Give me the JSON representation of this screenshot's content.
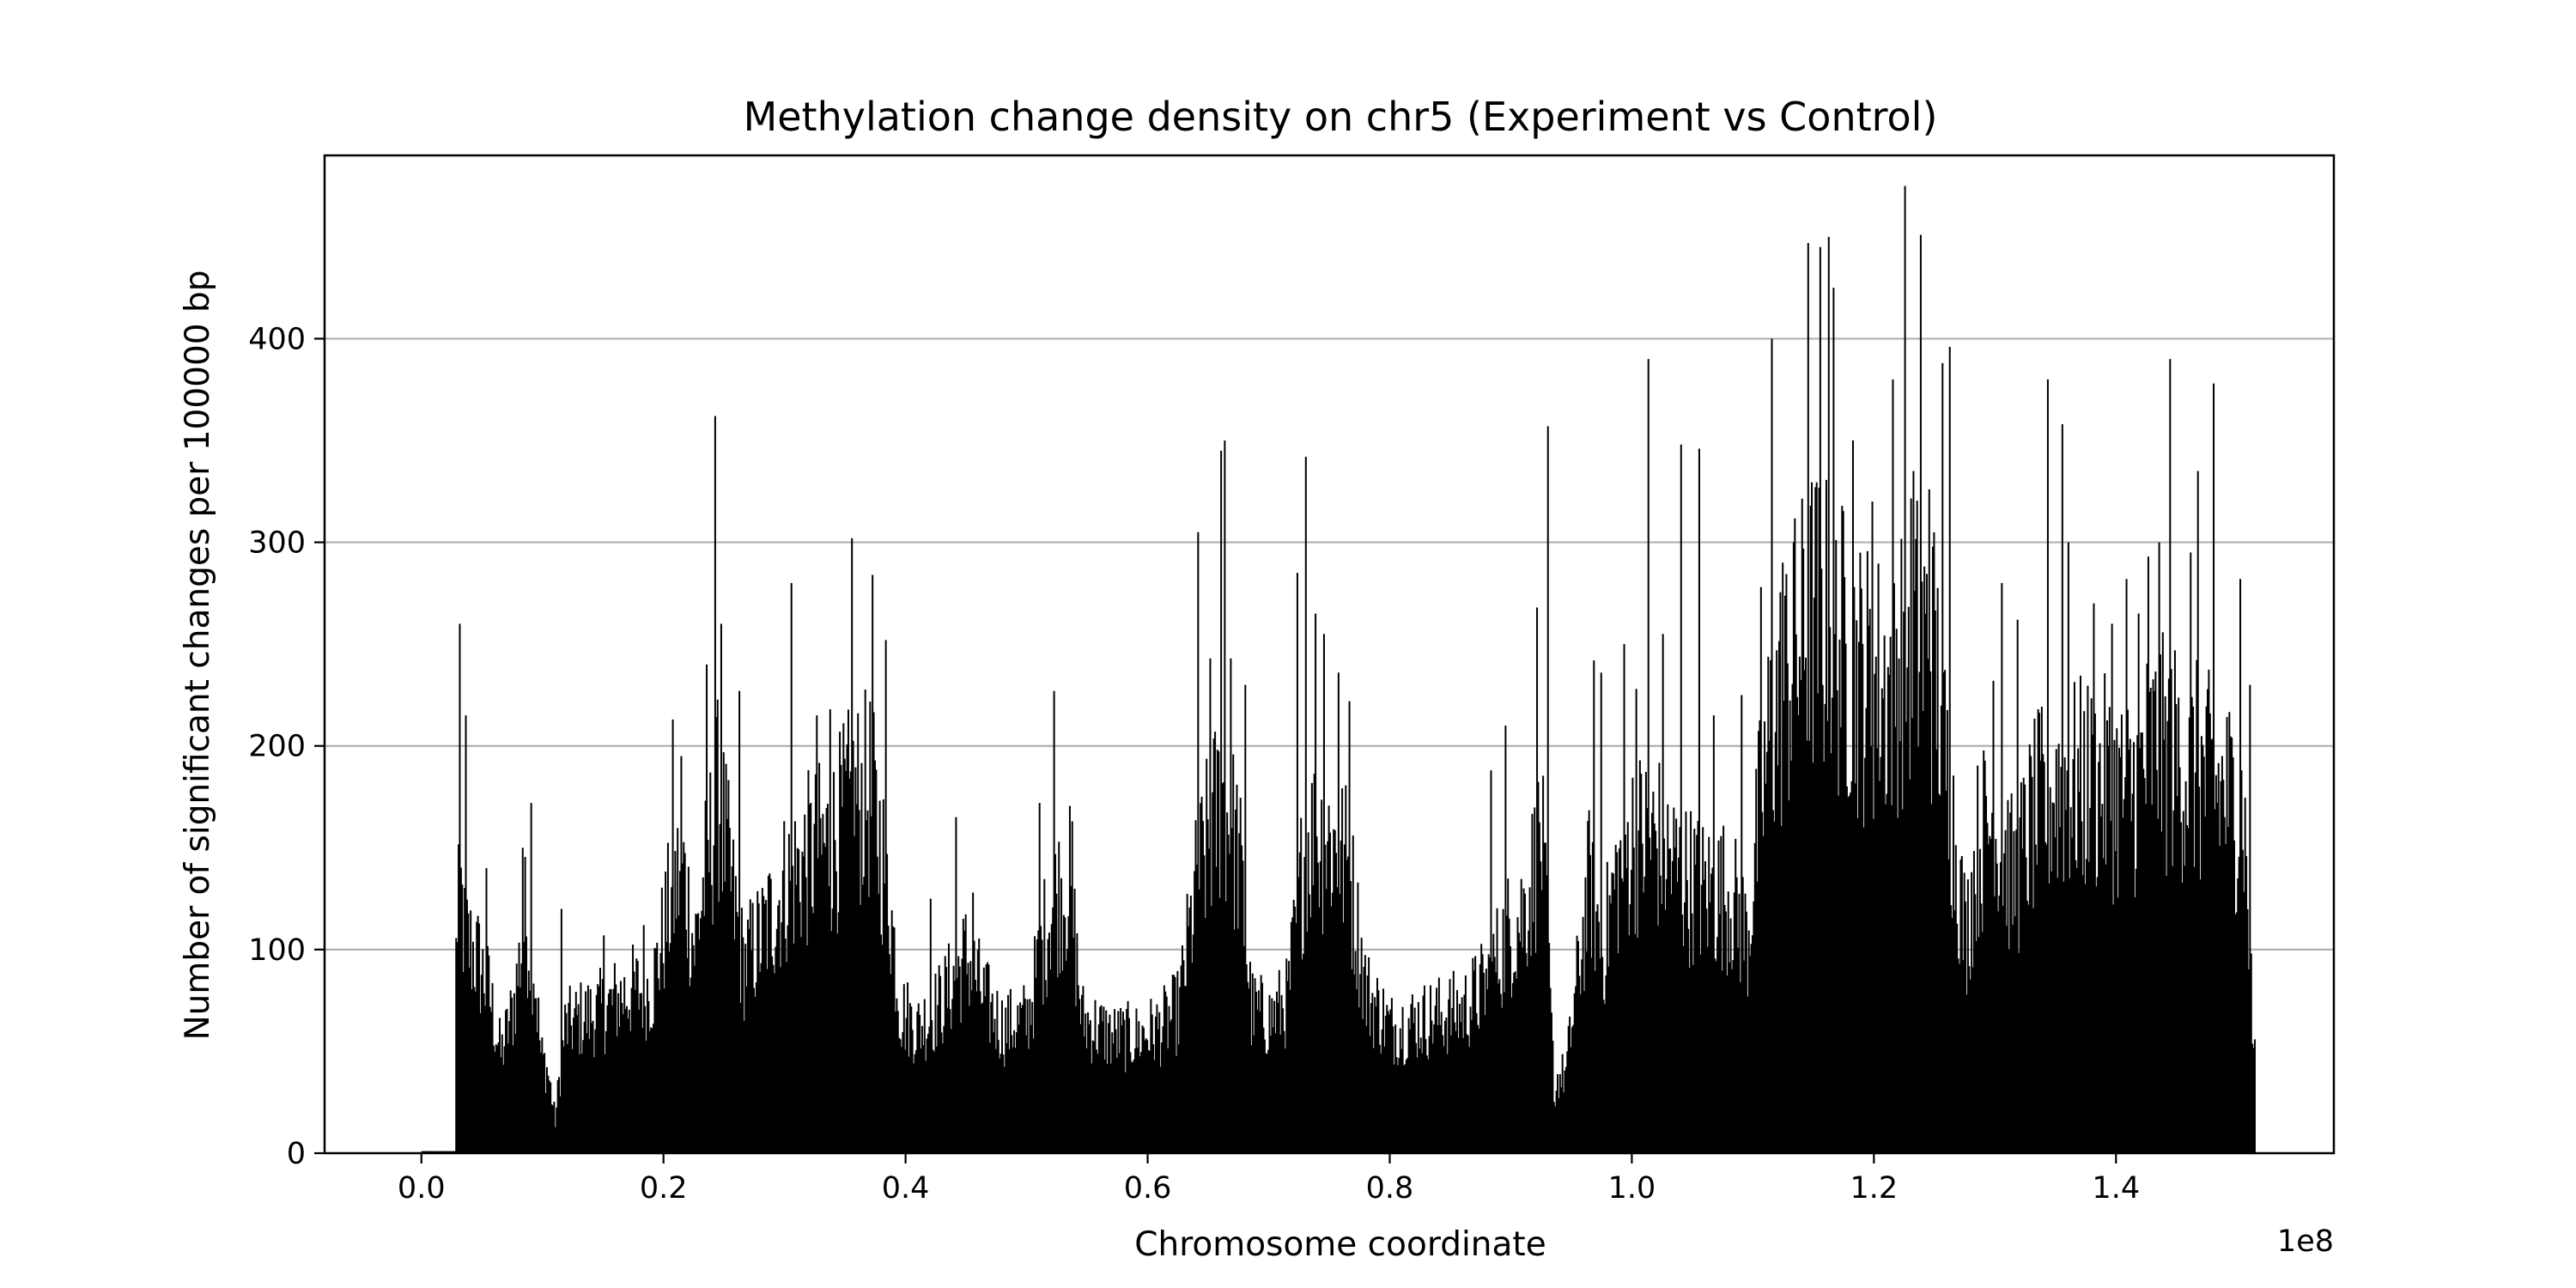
{
  "chart_data": {
    "type": "bar",
    "title": "Methylation change density on chr5 (Experiment vs Control)",
    "xlabel": "Chromosome coordinate",
    "ylabel": "Number of significant changes per 100000 bp",
    "x_offset_label": "1e8",
    "xlim": [
      -0.08,
      1.58
    ],
    "ylim": [
      0,
      490
    ],
    "x_unit_note": "x values in units of 1e8 bp",
    "bin_width": 0.001,
    "x_ticks": [
      0.0,
      0.2,
      0.4,
      0.6,
      0.8,
      1.0,
      1.2,
      1.4
    ],
    "x_tick_labels": [
      "0.0",
      "0.2",
      "0.4",
      "0.6",
      "0.8",
      "1.0",
      "1.2",
      "1.4"
    ],
    "y_ticks": [
      0,
      100,
      200,
      300,
      400
    ],
    "y_tick_labels": [
      "0",
      "100",
      "200",
      "300",
      "400"
    ],
    "grid": "y-major",
    "bar_color": "#000000",
    "grid_color": "#b0b0b0",
    "x_range": [
      0.0,
      1.515
    ],
    "profile": [
      [
        0.0,
        1
      ],
      [
        0.027,
        1
      ],
      [
        0.028,
        110
      ],
      [
        0.03,
        160
      ],
      [
        0.035,
        120
      ],
      [
        0.045,
        110
      ],
      [
        0.055,
        90
      ],
      [
        0.065,
        55
      ],
      [
        0.075,
        80
      ],
      [
        0.085,
        130
      ],
      [
        0.092,
        110
      ],
      [
        0.098,
        55
      ],
      [
        0.104,
        45
      ],
      [
        0.11,
        18
      ],
      [
        0.113,
        40
      ],
      [
        0.118,
        70
      ],
      [
        0.13,
        75
      ],
      [
        0.15,
        80
      ],
      [
        0.17,
        90
      ],
      [
        0.19,
        92
      ],
      [
        0.205,
        140
      ],
      [
        0.215,
        160
      ],
      [
        0.225,
        115
      ],
      [
        0.235,
        160
      ],
      [
        0.245,
        200
      ],
      [
        0.255,
        150
      ],
      [
        0.265,
        105
      ],
      [
        0.28,
        120
      ],
      [
        0.3,
        150
      ],
      [
        0.32,
        165
      ],
      [
        0.34,
        175
      ],
      [
        0.355,
        195
      ],
      [
        0.37,
        200
      ],
      [
        0.385,
        150
      ],
      [
        0.395,
        80
      ],
      [
        0.41,
        70
      ],
      [
        0.43,
        85
      ],
      [
        0.45,
        110
      ],
      [
        0.465,
        85
      ],
      [
        0.48,
        70
      ],
      [
        0.5,
        75
      ],
      [
        0.52,
        140
      ],
      [
        0.535,
        150
      ],
      [
        0.545,
        75
      ],
      [
        0.57,
        65
      ],
      [
        0.59,
        65
      ],
      [
        0.61,
        70
      ],
      [
        0.625,
        80
      ],
      [
        0.64,
        150
      ],
      [
        0.66,
        200
      ],
      [
        0.675,
        165
      ],
      [
        0.685,
        80
      ],
      [
        0.7,
        75
      ],
      [
        0.715,
        85
      ],
      [
        0.73,
        175
      ],
      [
        0.75,
        175
      ],
      [
        0.765,
        160
      ],
      [
        0.78,
        90
      ],
      [
        0.8,
        70
      ],
      [
        0.83,
        75
      ],
      [
        0.86,
        80
      ],
      [
        0.88,
        95
      ],
      [
        0.895,
        120
      ],
      [
        0.91,
        135
      ],
      [
        0.925,
        175
      ],
      [
        0.935,
        40
      ],
      [
        0.945,
        45
      ],
      [
        0.955,
        100
      ],
      [
        0.965,
        155
      ],
      [
        0.975,
        110
      ],
      [
        0.985,
        150
      ],
      [
        1.0,
        175
      ],
      [
        1.02,
        175
      ],
      [
        1.04,
        155
      ],
      [
        1.06,
        145
      ],
      [
        1.08,
        145
      ],
      [
        1.095,
        120
      ],
      [
        1.105,
        190
      ],
      [
        1.115,
        240
      ],
      [
        1.13,
        270
      ],
      [
        1.15,
        300
      ],
      [
        1.17,
        285
      ],
      [
        1.19,
        265
      ],
      [
        1.21,
        260
      ],
      [
        1.23,
        290
      ],
      [
        1.25,
        275
      ],
      [
        1.265,
        180
      ],
      [
        1.275,
        120
      ],
      [
        1.285,
        170
      ],
      [
        1.295,
        185
      ],
      [
        1.305,
        175
      ],
      [
        1.315,
        150
      ],
      [
        1.33,
        185
      ],
      [
        1.35,
        205
      ],
      [
        1.37,
        205
      ],
      [
        1.39,
        205
      ],
      [
        1.41,
        200
      ],
      [
        1.43,
        225
      ],
      [
        1.45,
        220
      ],
      [
        1.47,
        210
      ],
      [
        1.49,
        200
      ],
      [
        1.505,
        190
      ],
      [
        1.513,
        55
      ],
      [
        1.515,
        70
      ]
    ],
    "peaks": [
      [
        0.031,
        260
      ],
      [
        0.036,
        215
      ],
      [
        0.053,
        140
      ],
      [
        0.083,
        150
      ],
      [
        0.09,
        172
      ],
      [
        0.115,
        120
      ],
      [
        0.15,
        107
      ],
      [
        0.183,
        112
      ],
      [
        0.207,
        213
      ],
      [
        0.214,
        195
      ],
      [
        0.235,
        240
      ],
      [
        0.242,
        362
      ],
      [
        0.247,
        260
      ],
      [
        0.262,
        227
      ],
      [
        0.305,
        280
      ],
      [
        0.326,
        215
      ],
      [
        0.337,
        218
      ],
      [
        0.355,
        302
      ],
      [
        0.372,
        284
      ],
      [
        0.383,
        252
      ],
      [
        0.42,
        125
      ],
      [
        0.441,
        165
      ],
      [
        0.455,
        128
      ],
      [
        0.51,
        172
      ],
      [
        0.522,
        227
      ],
      [
        0.537,
        163
      ],
      [
        0.641,
        305
      ],
      [
        0.651,
        243
      ],
      [
        0.66,
        345
      ],
      [
        0.663,
        350
      ],
      [
        0.668,
        243
      ],
      [
        0.68,
        230
      ],
      [
        0.723,
        285
      ],
      [
        0.73,
        342
      ],
      [
        0.738,
        265
      ],
      [
        0.745,
        255
      ],
      [
        0.757,
        236
      ],
      [
        0.766,
        222
      ],
      [
        0.883,
        188
      ],
      [
        0.895,
        210
      ],
      [
        0.921,
        268
      ],
      [
        0.93,
        357
      ],
      [
        0.936,
        23
      ],
      [
        0.968,
        242
      ],
      [
        0.974,
        236
      ],
      [
        0.993,
        250
      ],
      [
        1.003,
        228
      ],
      [
        1.013,
        390
      ],
      [
        1.025,
        255
      ],
      [
        1.04,
        348
      ],
      [
        1.055,
        346
      ],
      [
        1.067,
        215
      ],
      [
        1.09,
        225
      ],
      [
        1.106,
        278
      ],
      [
        1.115,
        400
      ],
      [
        1.124,
        290
      ],
      [
        1.133,
        300
      ],
      [
        1.145,
        447
      ],
      [
        1.155,
        445
      ],
      [
        1.162,
        450
      ],
      [
        1.166,
        425
      ],
      [
        1.182,
        350
      ],
      [
        1.198,
        320
      ],
      [
        1.215,
        380
      ],
      [
        1.225,
        475
      ],
      [
        1.232,
        335
      ],
      [
        1.238,
        451
      ],
      [
        1.245,
        326
      ],
      [
        1.256,
        388
      ],
      [
        1.262,
        396
      ],
      [
        1.298,
        232
      ],
      [
        1.305,
        280
      ],
      [
        1.318,
        262
      ],
      [
        1.343,
        380
      ],
      [
        1.355,
        358
      ],
      [
        1.36,
        300
      ],
      [
        1.381,
        270
      ],
      [
        1.396,
        260
      ],
      [
        1.408,
        282
      ],
      [
        1.418,
        265
      ],
      [
        1.426,
        293
      ],
      [
        1.435,
        300
      ],
      [
        1.444,
        390
      ],
      [
        1.461,
        295
      ],
      [
        1.467,
        335
      ],
      [
        1.48,
        378
      ],
      [
        1.502,
        282
      ],
      [
        1.51,
        230
      ]
    ]
  }
}
